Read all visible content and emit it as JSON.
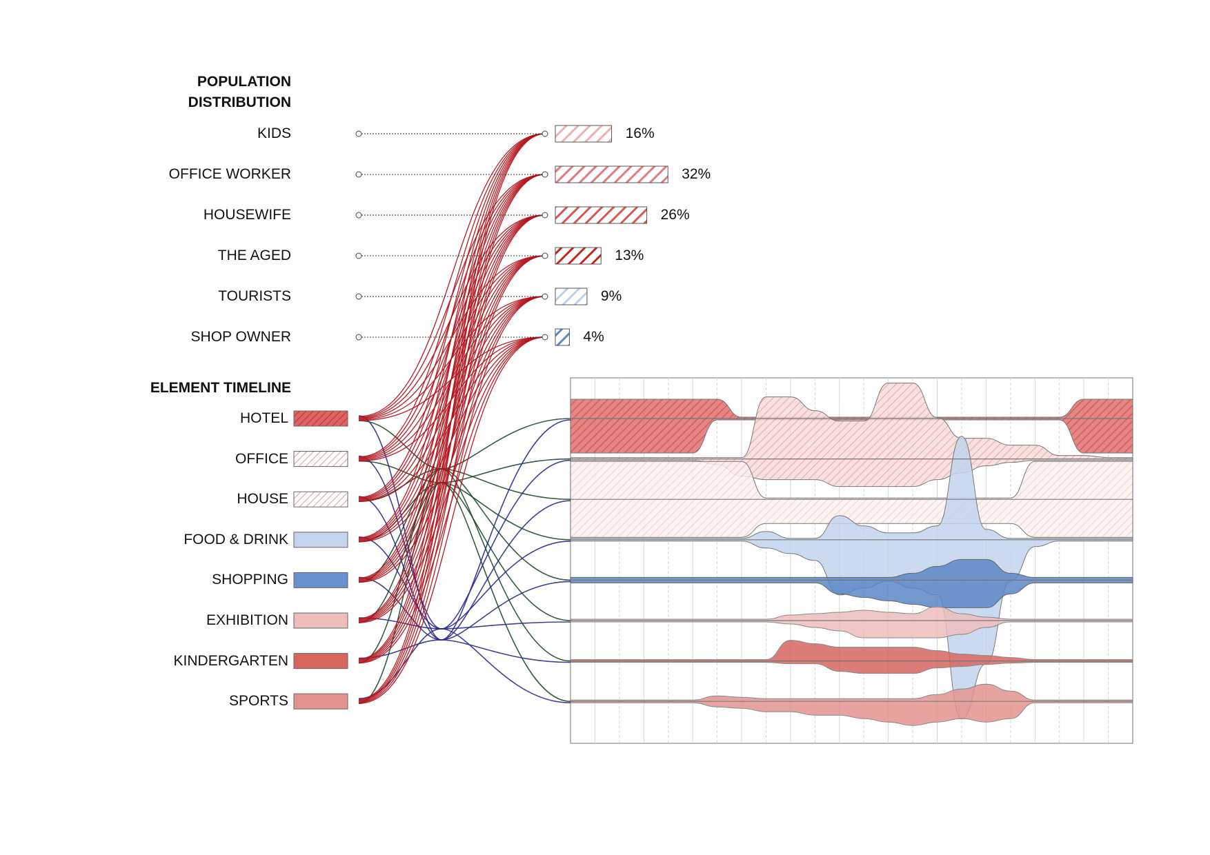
{
  "population": {
    "heading": "POPULATION\nDISTRIBUTION",
    "items": [
      {
        "label": "KIDS",
        "value_label": "16%"
      },
      {
        "label": "OFFICE WORKER",
        "value_label": "32%"
      },
      {
        "label": "HOUSEWIFE",
        "value_label": "26%"
      },
      {
        "label": "THE AGED",
        "value_label": "13%"
      },
      {
        "label": "TOURISTS",
        "value_label": "9%"
      },
      {
        "label": "SHOP OWNER",
        "value_label": "4%"
      }
    ],
    "bar_colors": [
      "#f0b0b0",
      "#e27a7a",
      "#d9544f",
      "#c3241e",
      "#bcd0ea",
      "#5a86c6"
    ]
  },
  "timeline": {
    "heading": "ELEMENT TIMELINE",
    "items": [
      {
        "label": "HOTEL",
        "swatch_color": "#e06363",
        "hatched": true
      },
      {
        "label": "OFFICE",
        "swatch_color": "#f3c2c2",
        "hatched": true
      },
      {
        "label": "HOUSE",
        "swatch_color": "#fbe7e7",
        "hatched": true
      },
      {
        "label": "FOOD & DRINK",
        "swatch_color": "#c3d4ec",
        "hatched": false
      },
      {
        "label": "SHOPPING",
        "swatch_color": "#6791cc",
        "hatched": false
      },
      {
        "label": "EXHIBITION",
        "swatch_color": "#efbcbc",
        "hatched": false
      },
      {
        "label": "KINDERGARTEN",
        "swatch_color": "#d7665f",
        "hatched": false
      },
      {
        "label": "SPORTS",
        "swatch_color": "#e3938f",
        "hatched": false
      }
    ]
  },
  "colors": {
    "link_population": "#b3121b",
    "link_green": "#1f4a2a",
    "link_blue": "#2a2a8c",
    "frame": "#8a8a8a"
  },
  "chart_data": {
    "type": "bar",
    "orientation": "horizontal",
    "title": "POPULATION DISTRIBUTION",
    "categories": [
      "KIDS",
      "OFFICE WORKER",
      "HOUSEWIFE",
      "THE AGED",
      "TOURISTS",
      "SHOP OWNER"
    ],
    "values": [
      16,
      32,
      26,
      13,
      9,
      4
    ],
    "unit": "%",
    "grid": false,
    "legend": "none"
  }
}
